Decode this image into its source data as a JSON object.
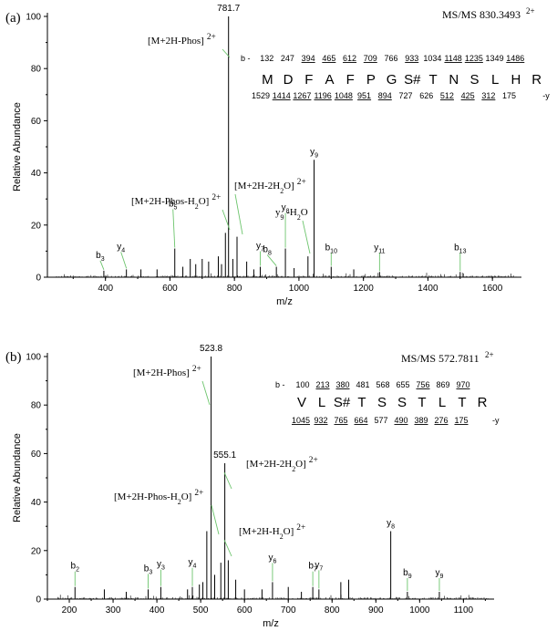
{
  "chart_data": [
    {
      "panel_label": "(a)",
      "type": "bar",
      "title": "MS/MS 830.3493",
      "title_charge": "2+",
      "xlabel": "m/z",
      "ylabel": "Relative Abundance",
      "xlim": [
        220,
        1690
      ],
      "ylim": [
        0,
        100
      ],
      "xticks": [
        400,
        600,
        800,
        1000,
        1200,
        1400,
        1600
      ],
      "yticks": [
        0,
        20,
        40,
        60,
        80,
        100
      ],
      "peaks": [
        {
          "x": 781.7,
          "y": 100
        },
        {
          "x": 1047,
          "y": 45
        },
        {
          "x": 772,
          "y": 17
        },
        {
          "x": 808,
          "y": 15.5
        },
        {
          "x": 615,
          "y": 11
        },
        {
          "x": 958,
          "y": 11
        },
        {
          "x": 1028,
          "y": 8
        },
        {
          "x": 750,
          "y": 8
        },
        {
          "x": 663,
          "y": 7
        },
        {
          "x": 700,
          "y": 7
        },
        {
          "x": 720,
          "y": 6
        },
        {
          "x": 795,
          "y": 7
        },
        {
          "x": 838,
          "y": 6
        },
        {
          "x": 760,
          "y": 5
        },
        {
          "x": 930,
          "y": 4
        },
        {
          "x": 880,
          "y": 4
        },
        {
          "x": 985,
          "y": 3.5
        },
        {
          "x": 1100,
          "y": 4
        },
        {
          "x": 1170,
          "y": 3
        },
        {
          "x": 465,
          "y": 3
        },
        {
          "x": 395,
          "y": 2.5
        },
        {
          "x": 510,
          "y": 3
        },
        {
          "x": 560,
          "y": 3
        },
        {
          "x": 1250,
          "y": 2
        },
        {
          "x": 1500,
          "y": 2
        },
        {
          "x": 640,
          "y": 4
        },
        {
          "x": 680,
          "y": 5
        },
        {
          "x": 860,
          "y": 3
        }
      ],
      "annotations": [
        {
          "base": "781.7",
          "sub": "",
          "sup": "",
          "x": 781.7,
          "y": 100
        },
        {
          "base": "y",
          "sub": "9",
          "sup": "",
          "x": 1047,
          "y": 45
        },
        {
          "base": "b",
          "sub": "3",
          "sup": "",
          "x": 395,
          "y": 2.5
        },
        {
          "base": "y",
          "sub": "4",
          "sup": "",
          "x": 465,
          "y": 3
        },
        {
          "base": "b",
          "sub": "5",
          "sup": "",
          "x": 615,
          "y": 11
        },
        {
          "base": "y",
          "sub": "7",
          "sup": "",
          "x": 880,
          "y": 4
        },
        {
          "base": "b",
          "sub": "8",
          "sup": "",
          "x": 930,
          "y": 4
        },
        {
          "base": "y",
          "sub": "8",
          "sup": "",
          "x": 958,
          "y": 11
        },
        {
          "base": "b",
          "sub": "10",
          "sup": "",
          "x": 1100,
          "y": 4
        },
        {
          "base": "y",
          "sub": "11",
          "sup": "",
          "x": 1250,
          "y": 2
        },
        {
          "base": "b",
          "sub": "13",
          "sup": "",
          "x": 1500,
          "y": 2
        }
      ],
      "precursor_labels": [
        {
          "text": "[M+2H-Phos]",
          "charge": "2+",
          "x": 781.7,
          "y": 96
        },
        {
          "text": "[M+2H-Phos-H2O]",
          "charge": "2+",
          "x": 772,
          "y": 17
        },
        {
          "text": "[M+2H-2H2O]",
          "charge": "2+",
          "x": 808,
          "y": 15.5
        },
        {
          "text": "y9 -H2O",
          "charge": "",
          "x": 1028,
          "y": 8
        }
      ],
      "sequence": [
        "M",
        "D",
        "F",
        "A",
        "F",
        "P",
        "G",
        "S#",
        "T",
        "N",
        "S",
        "L",
        "H",
        "R"
      ],
      "b_ions": [
        "132",
        "247",
        "394",
        "465",
        "612",
        "709",
        "766",
        "933",
        "1034",
        "1148",
        "1235",
        "1349",
        "1486"
      ],
      "b_underlined": [
        false,
        false,
        true,
        true,
        true,
        true,
        false,
        true,
        false,
        true,
        true,
        false,
        true
      ],
      "y_ions": [
        "1529",
        "1414",
        "1267",
        "1196",
        "1048",
        "951",
        "894",
        "727",
        "626",
        "512",
        "425",
        "312",
        "175"
      ],
      "y_underlined": [
        false,
        true,
        true,
        true,
        true,
        true,
        true,
        false,
        false,
        true,
        true,
        true,
        false
      ]
    },
    {
      "panel_label": "(b)",
      "type": "bar",
      "title": "MS/MS 572.7811",
      "title_charge": "2+",
      "xlabel": "m/z",
      "ylabel": "Relative Abundance",
      "xlim": [
        150,
        1170
      ],
      "ylim": [
        0,
        100
      ],
      "xticks": [
        200,
        300,
        400,
        500,
        600,
        700,
        800,
        900,
        1000,
        1100
      ],
      "yticks": [
        0,
        20,
        40,
        60,
        80,
        100
      ],
      "peaks": [
        {
          "x": 523.8,
          "y": 100
        },
        {
          "x": 555.1,
          "y": 56
        },
        {
          "x": 934,
          "y": 28
        },
        {
          "x": 514,
          "y": 28
        },
        {
          "x": 563,
          "y": 16
        },
        {
          "x": 546,
          "y": 15
        },
        {
          "x": 213,
          "y": 5
        },
        {
          "x": 380,
          "y": 4
        },
        {
          "x": 409,
          "y": 5
        },
        {
          "x": 481,
          "y": 5
        },
        {
          "x": 664,
          "y": 7
        },
        {
          "x": 756,
          "y": 5
        },
        {
          "x": 770,
          "y": 4
        },
        {
          "x": 820,
          "y": 7
        },
        {
          "x": 838,
          "y": 8
        },
        {
          "x": 972,
          "y": 3
        },
        {
          "x": 1045,
          "y": 3
        },
        {
          "x": 470,
          "y": 4
        },
        {
          "x": 497,
          "y": 6
        },
        {
          "x": 505,
          "y": 7
        },
        {
          "x": 532,
          "y": 10
        },
        {
          "x": 580,
          "y": 8
        },
        {
          "x": 600,
          "y": 4
        },
        {
          "x": 640,
          "y": 4
        },
        {
          "x": 700,
          "y": 5
        },
        {
          "x": 730,
          "y": 3
        },
        {
          "x": 330,
          "y": 3
        },
        {
          "x": 280,
          "y": 4
        }
      ],
      "annotations": [
        {
          "base": "523.8",
          "sub": "",
          "sup": "",
          "x": 523.8,
          "y": 100
        },
        {
          "base": "555.1",
          "sub": "",
          "sup": "",
          "x": 555.1,
          "y": 56
        },
        {
          "base": "y",
          "sub": "8",
          "sup": "",
          "x": 934,
          "y": 28
        },
        {
          "base": "b",
          "sub": "2",
          "sup": "",
          "x": 213,
          "y": 5
        },
        {
          "base": "b",
          "sub": "3",
          "sup": "",
          "x": 380,
          "y": 4
        },
        {
          "base": "y",
          "sub": "3",
          "sup": "",
          "x": 409,
          "y": 5
        },
        {
          "base": "y",
          "sub": "4",
          "sup": "",
          "x": 481,
          "y": 5
        },
        {
          "base": "y",
          "sub": "6",
          "sup": "",
          "x": 664,
          "y": 7
        },
        {
          "base": "b",
          "sub": "7",
          "sup": "",
          "x": 756,
          "y": 5
        },
        {
          "base": "y",
          "sub": "7",
          "sup": "",
          "x": 770,
          "y": 4
        },
        {
          "base": "b",
          "sub": "9",
          "sup": "",
          "x": 972,
          "y": 3
        },
        {
          "base": "y",
          "sub": "9",
          "sup": "",
          "x": 1045,
          "y": 3
        }
      ],
      "precursor_labels": [
        {
          "text": "[M+2H-Phos]",
          "charge": "2+",
          "x": 523.8,
          "y": 78
        },
        {
          "text": "[M+2H-2H2O]",
          "charge": "2+",
          "x": 555.1,
          "y": 42
        },
        {
          "text": "[M+2H-Phos-H2O]",
          "charge": "2+",
          "x": 514,
          "y": 28
        },
        {
          "text": "[M+2H-H2O]",
          "charge": "2+",
          "x": 563,
          "y": 16
        }
      ],
      "sequence": [
        "V",
        "L",
        "S#",
        "T",
        "S",
        "S",
        "T",
        "L",
        "T",
        "R"
      ],
      "b_ions": [
        "100",
        "213",
        "380",
        "481",
        "568",
        "655",
        "756",
        "869",
        "970"
      ],
      "b_underlined": [
        false,
        true,
        true,
        false,
        false,
        false,
        true,
        false,
        true
      ],
      "y_ions": [
        "1045",
        "932",
        "765",
        "664",
        "577",
        "490",
        "389",
        "276",
        "175"
      ],
      "y_underlined": [
        true,
        true,
        true,
        true,
        false,
        true,
        true,
        true,
        true
      ]
    }
  ]
}
